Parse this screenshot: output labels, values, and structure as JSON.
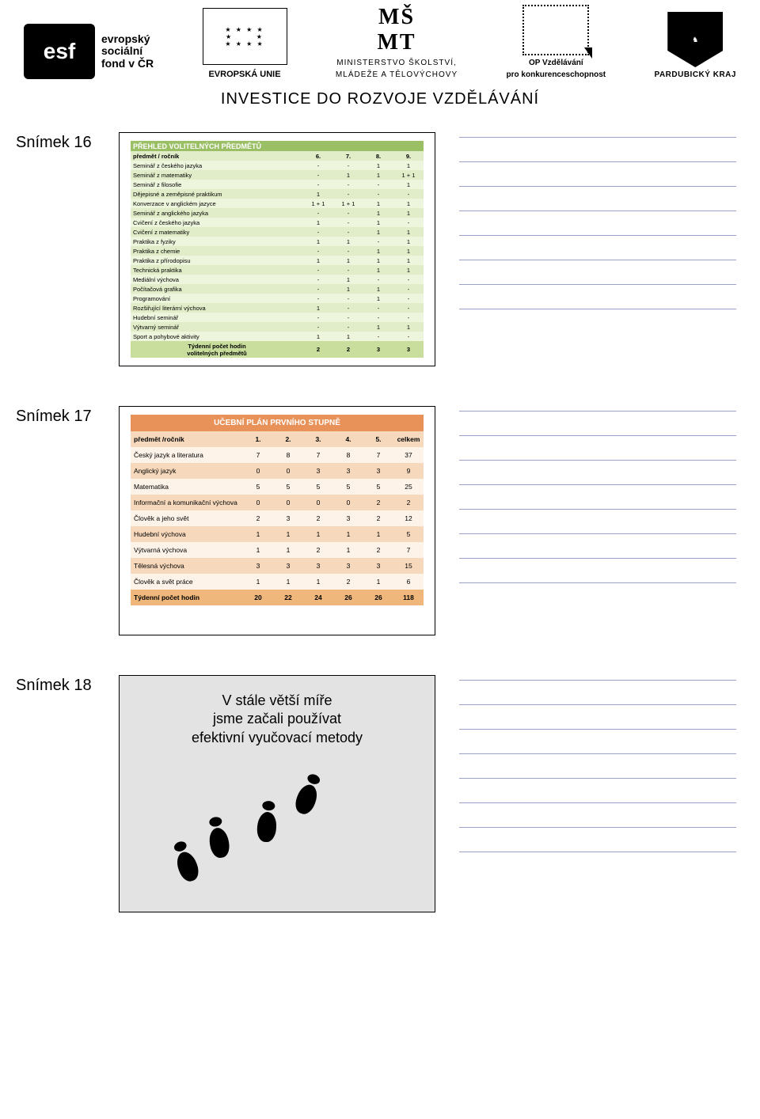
{
  "header": {
    "esf_mark": "esf",
    "esf_text1": "evropský",
    "esf_text2": "sociální",
    "esf_text3": "fond v ČR",
    "eu_label": "EVROPSKÁ UNIE",
    "msmt_logo": "MŠMT",
    "msmt_line1": "MINISTERSTVO ŠKOLSTVÍ,",
    "msmt_line2": "MLÁDEŽE A TĚLOVÝCHOVY",
    "op_line1": "OP Vzdělávání",
    "op_line2": "pro konkurenceschopnost",
    "kraj": "PARDUBICKÝ KRAJ",
    "investice": "INVESTICE DO ROZVOJE VZDĚLÁVÁNÍ"
  },
  "slide16": {
    "label": "Snímek 16",
    "title": "PŘEHLED VOLITELNÝCH PŘEDMĚTŮ",
    "head": [
      "předmět / ročník",
      "6.",
      "7.",
      "8.",
      "9."
    ],
    "rows": [
      [
        "Seminář z českého jazyka",
        "-",
        "-",
        "1",
        "1"
      ],
      [
        "Seminář z matematiky",
        "-",
        "1",
        "1",
        "1 + 1"
      ],
      [
        "Seminář z filosofie",
        "-",
        "-",
        "-",
        "1"
      ],
      [
        "Dějepisné a zeměpisné praktikum",
        "1",
        "-",
        "-",
        "-"
      ],
      [
        "Konverzace v anglickém jazyce",
        "1 + 1",
        "1 + 1",
        "1",
        "1"
      ],
      [
        "Seminář z anglického jazyka",
        "-",
        "-",
        "1",
        "1"
      ],
      [
        "Cvičení z českého jazyka",
        "1",
        "-",
        "1",
        "-"
      ],
      [
        "Cvičení z matematiky",
        "-",
        "-",
        "1",
        "1"
      ],
      [
        "Praktika z fyziky",
        "1",
        "1",
        "-",
        "1"
      ],
      [
        "Praktika z chemie",
        "-",
        "-",
        "1",
        "1"
      ],
      [
        "Praktika z přírodopisu",
        "1",
        "1",
        "1",
        "1"
      ],
      [
        "Technická praktika",
        "-",
        "-",
        "1",
        "1"
      ],
      [
        "Mediální výchova",
        "-",
        "1",
        "-",
        "-"
      ],
      [
        "Počítačová grafika",
        "-",
        "1",
        "1",
        "-"
      ],
      [
        "Programování",
        "-",
        "-",
        "1",
        "-"
      ],
      [
        "Rozšiřující literární výchova",
        "1",
        "-",
        "-",
        "-"
      ],
      [
        "Hudební seminář",
        "-",
        "-",
        "-",
        "-"
      ],
      [
        "Výtvarný seminář",
        "-",
        "-",
        "1",
        "1"
      ],
      [
        "Sport a pohybové aktivity",
        "1",
        "1",
        "-",
        "-"
      ]
    ],
    "foot_label1": "Týdenní počet hodin",
    "foot_label2": "volitelných předmětů",
    "foot_vals": [
      "2",
      "2",
      "3",
      "3"
    ],
    "colors": {
      "title": "#9bbf65",
      "head": "#e1edc8",
      "rowA": "#eef5dd",
      "rowB": "#e1edc8",
      "foot": "#c9dd9c"
    }
  },
  "slide17": {
    "label": "Snímek 17",
    "title": "UČEBNÍ PLÁN PRVNÍHO STUPNĚ",
    "head": [
      "předmět /ročník",
      "1.",
      "2.",
      "3.",
      "4.",
      "5.",
      "celkem"
    ],
    "rows": [
      [
        "Český jazyk a literatura",
        "7",
        "8",
        "7",
        "8",
        "7",
        "37"
      ],
      [
        "Anglický jazyk",
        "0",
        "0",
        "3",
        "3",
        "3",
        "9"
      ],
      [
        "Matematika",
        "5",
        "5",
        "5",
        "5",
        "5",
        "25"
      ],
      [
        "Informační a komunikační výchova",
        "0",
        "0",
        "0",
        "0",
        "2",
        "2"
      ],
      [
        "Člověk a jeho svět",
        "2",
        "3",
        "2",
        "3",
        "2",
        "12"
      ],
      [
        "Hudební výchova",
        "1",
        "1",
        "1",
        "1",
        "1",
        "5"
      ],
      [
        "Výtvarná výchova",
        "1",
        "1",
        "2",
        "1",
        "2",
        "7"
      ],
      [
        "Tělesná výchova",
        "3",
        "3",
        "3",
        "3",
        "3",
        "15"
      ],
      [
        "Člověk a svět práce",
        "1",
        "1",
        "1",
        "2",
        "1",
        "6"
      ]
    ],
    "foot": [
      "Týdenní počet hodin",
      "20",
      "22",
      "24",
      "26",
      "26",
      "118"
    ],
    "colors": {
      "title": "#e8925a",
      "head": "#f6d9bc",
      "rowA": "#fdf3e8",
      "rowB": "#f6d9bc",
      "foot": "#f0b77d"
    }
  },
  "slide18": {
    "label": "Snímek 18",
    "line1": "V stále větší míře",
    "line2": "jsme začali používat",
    "line3": "efektivní vyučovací metody",
    "bg": "#e3e3e3"
  },
  "note_lines": 8
}
